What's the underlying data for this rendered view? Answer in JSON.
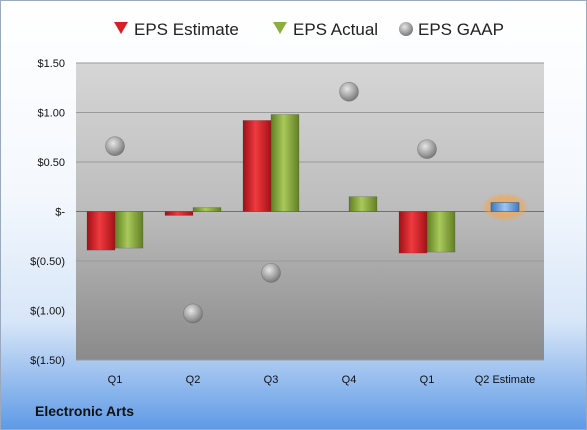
{
  "company": "Electronic Arts",
  "chart_data": {
    "type": "bar",
    "categories": [
      "Q1",
      "Q2",
      "Q3",
      "Q4",
      "Q1",
      "Q2 Estimate"
    ],
    "series": [
      {
        "name": "EPS Estimate",
        "color": "#d42026",
        "values": [
          -0.39,
          -0.04,
          0.92,
          null,
          -0.42,
          null
        ]
      },
      {
        "name": "EPS Actual",
        "color": "#8bae3f",
        "values": [
          -0.37,
          0.04,
          0.98,
          0.15,
          -0.41,
          null
        ]
      },
      {
        "name": "EPS GAAP",
        "color": "#a8a8a8",
        "style": "marker",
        "values": [
          0.66,
          -1.03,
          -0.62,
          1.21,
          0.63,
          null
        ]
      }
    ],
    "highlight": {
      "category": "Q2 Estimate",
      "value": 0.09,
      "color": "#5b9bd5",
      "glow": "#f4a34a"
    },
    "ylim": [
      -1.5,
      1.5
    ],
    "yticks": [
      1.5,
      1.0,
      0.5,
      0,
      -0.5,
      -1.0,
      -1.5
    ],
    "ytick_labels": [
      "$1.50",
      "$1.00",
      "$0.50",
      "$-",
      "$(0.50)",
      "$(1.00)",
      "$(1.50)"
    ],
    "legend_position": "top",
    "grid": true
  }
}
